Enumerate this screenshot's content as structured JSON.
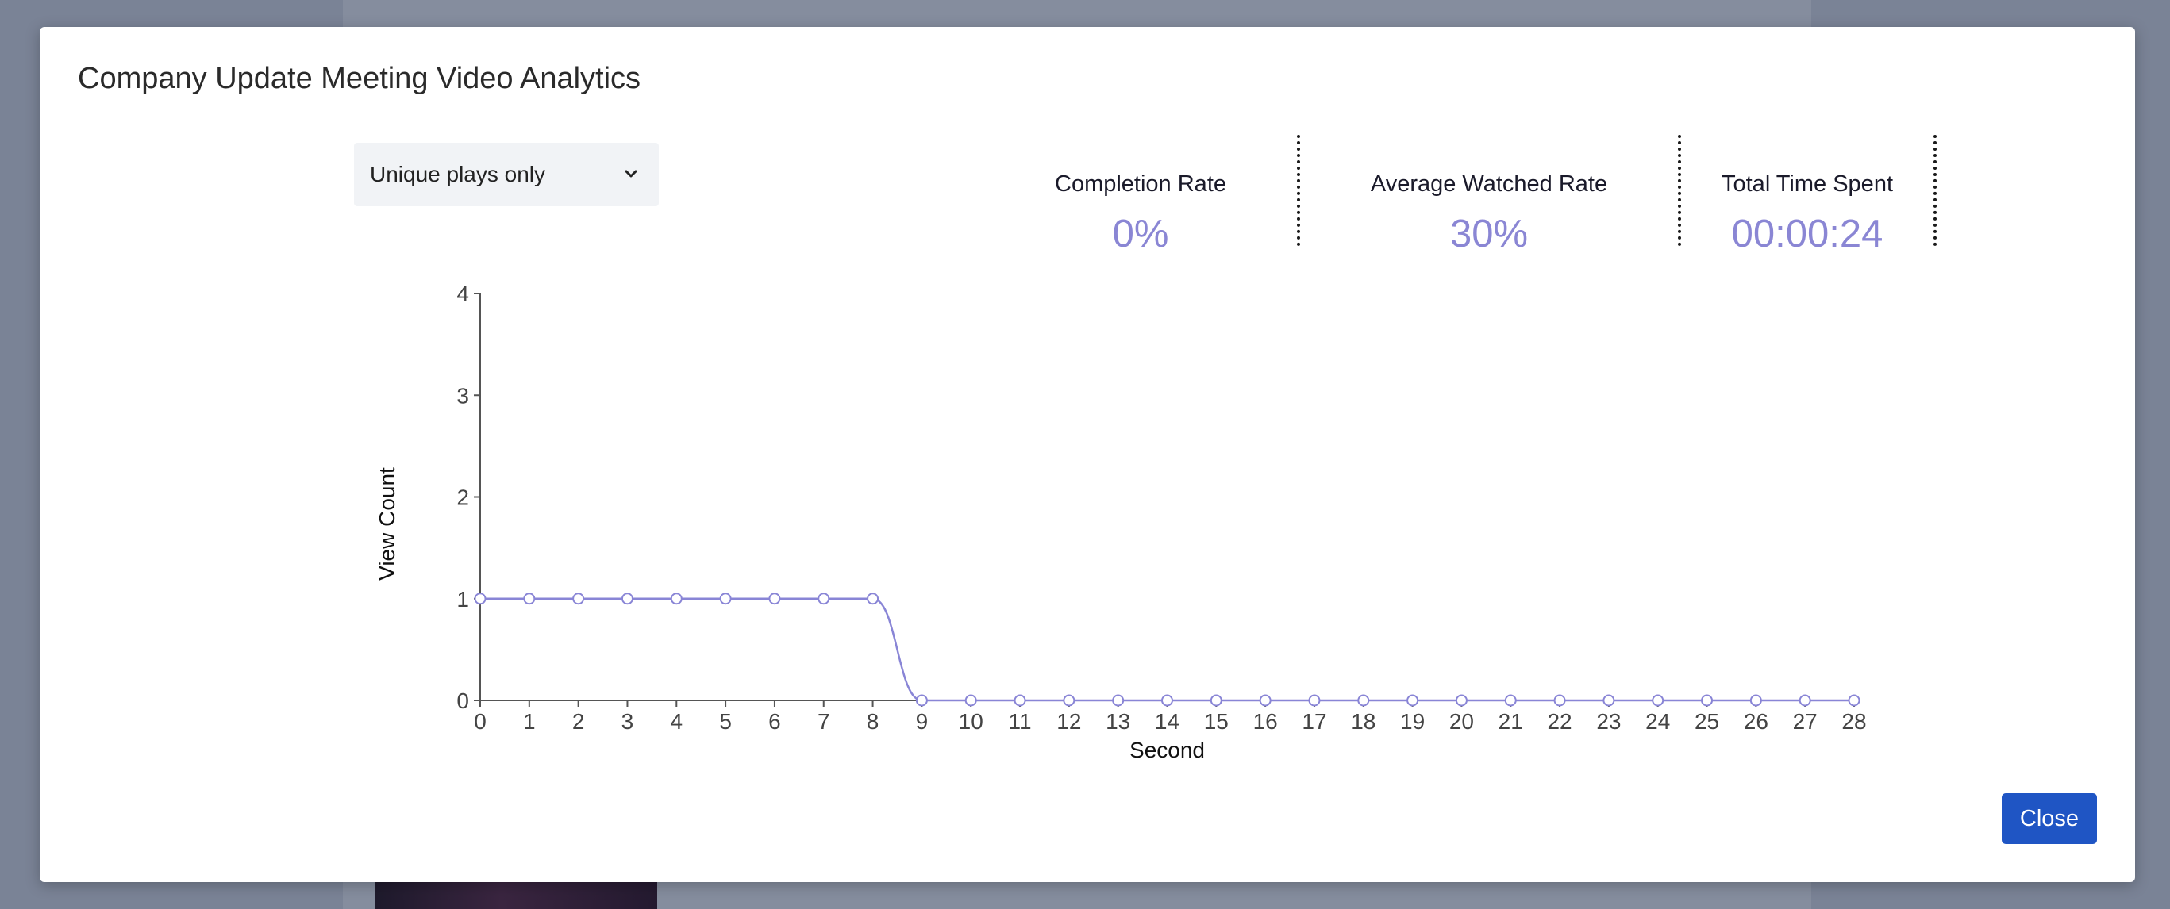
{
  "modal": {
    "title": "Company Update Meeting Video Analytics",
    "close_label": "Close"
  },
  "filter": {
    "selected": "Unique plays only",
    "icon": "chevron-down-icon"
  },
  "stats": [
    {
      "label": "Completion Rate",
      "value": "0%"
    },
    {
      "label": "Average Watched Rate",
      "value": "30%"
    },
    {
      "label": "Total Time Spent",
      "value": "00:00:24"
    }
  ],
  "colors": {
    "accent": "#8a86d4",
    "line": "#8985d6",
    "button": "#1f55c4",
    "overlay": "#7a8396"
  },
  "chart_data": {
    "type": "line",
    "xlabel": "Second",
    "ylabel": "View Count",
    "x": [
      0,
      1,
      2,
      3,
      4,
      5,
      6,
      7,
      8,
      9,
      10,
      11,
      12,
      13,
      14,
      15,
      16,
      17,
      18,
      19,
      20,
      21,
      22,
      23,
      24,
      25,
      26,
      27,
      28
    ],
    "y": [
      1,
      1,
      1,
      1,
      1,
      1,
      1,
      1,
      1,
      0,
      0,
      0,
      0,
      0,
      0,
      0,
      0,
      0,
      0,
      0,
      0,
      0,
      0,
      0,
      0,
      0,
      0,
      0,
      0
    ],
    "xlim": [
      0,
      28
    ],
    "ylim": [
      0,
      4
    ],
    "yticks": [
      0,
      1,
      2,
      3,
      4
    ],
    "grid": false,
    "legend": "none"
  }
}
